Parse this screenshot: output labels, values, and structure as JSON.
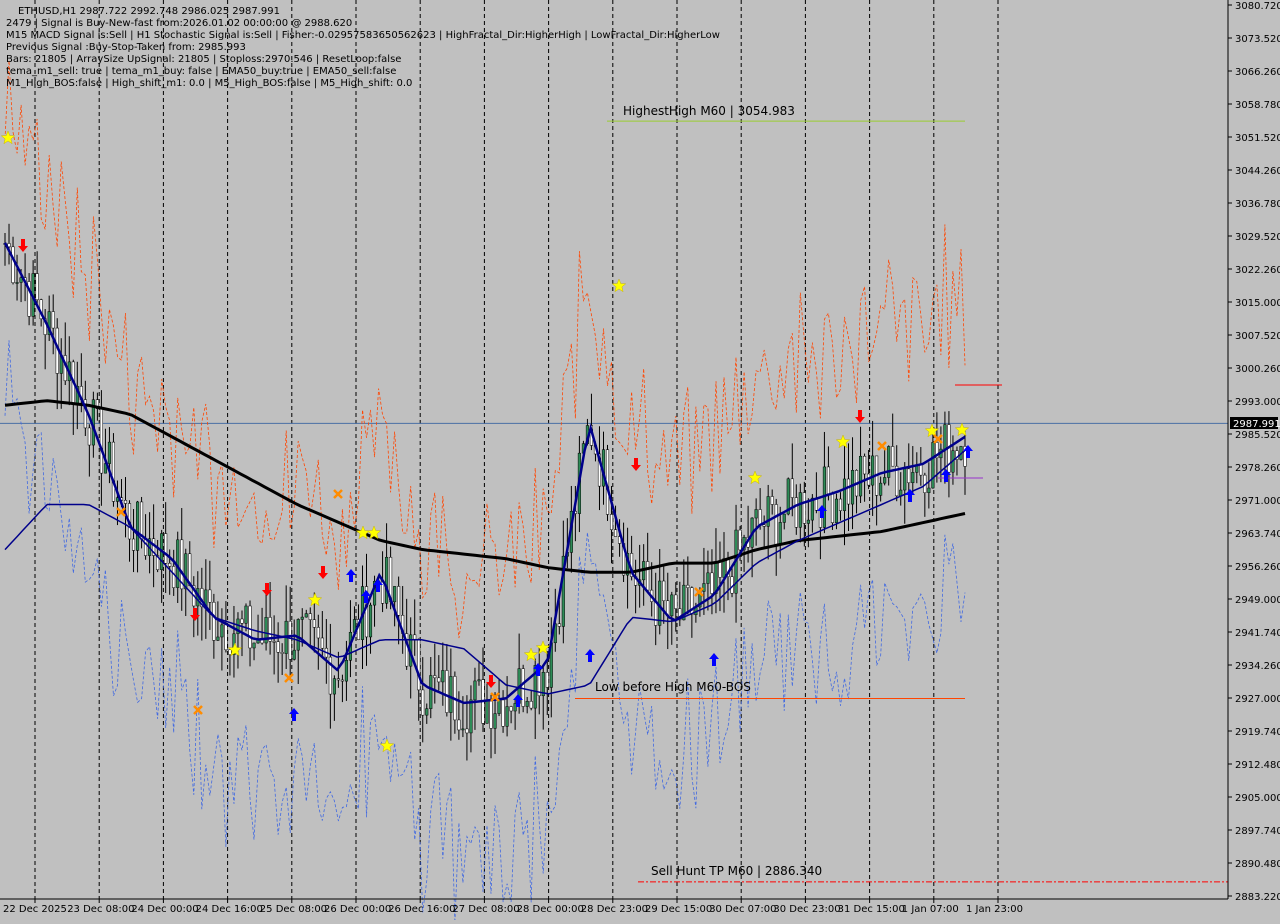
{
  "window": {
    "symbol_title": "ETHUSD,H1  2987.722 2992.748 2986.025 2987.991"
  },
  "info_lines": [
    "2479 | Signal is Buy-New-fast from:2026.01.02 00:00:00 @ 2988.620",
    "M15 MACD Signal is:Sell | H1 Stochastic Signal is:Sell | Fisher:-0.02957583650562623 | HighFractal_Dir:HigherHigh | LowFractal_Dir:HigherLow",
    "Previous Signal :Buy-Stop-Taken from: 2985.993",
    "Bars: 21805 | ArraySize UpSignal: 21805 | Stoploss:2970.546 | ResetLoop:false",
    "tema_m1_sell: true | tema_m1_buy: false | EMA50_buy:true | EMA50_sell:false",
    "M1_High_BOS:false | High_shift_m1: 0.0 | M5_High_BOS:false | M5_High_shift: 0.0"
  ],
  "price_axis": {
    "labels": [
      "3080.720",
      "3073.520",
      "3066.260",
      "3058.780",
      "3051.520",
      "3044.260",
      "3036.780",
      "3029.520",
      "3022.260",
      "3015.000",
      "3007.520",
      "3000.260",
      "2993.000",
      "2985.520",
      "2978.260",
      "2971.000",
      "2963.740",
      "2956.260",
      "2949.000",
      "2941.740",
      "2934.260",
      "2927.000",
      "2919.740",
      "2912.480",
      "2905.000",
      "2897.740",
      "2890.480",
      "2883.220"
    ],
    "current_price": "2987.991",
    "ylim": [
      2883.22,
      3080.72
    ]
  },
  "time_axis": {
    "labels": [
      "22 Dec 2025",
      "23 Dec 08:00",
      "24 Dec 00:00",
      "24 Dec 16:00",
      "25 Dec 08:00",
      "26 Dec 00:00",
      "26 Dec 16:00",
      "27 Dec 08:00",
      "28 Dec 00:00",
      "28 Dec 23:00",
      "29 Dec 15:00",
      "30 Dec 07:00",
      "30 Dec 23:00",
      "31 Dec 15:00",
      "1 Jan 07:00",
      "1 Jan 23:00"
    ]
  },
  "chart_data": {
    "type": "line",
    "title": "ETHUSD,H1",
    "ylim": [
      2883.22,
      3080.72
    ],
    "grid": true,
    "series": [
      {
        "values": [
          2992,
          2993,
          2992,
          2990,
          2985,
          2980,
          2975,
          2970,
          2966,
          2962,
          2960,
          2959,
          2958,
          2956,
          2955,
          2955,
          2957,
          2957,
          2960,
          2962,
          2963,
          2964,
          2966,
          2968
        ]
      },
      {
        "values": [
          3028,
          3010,
          2990,
          2965,
          2958,
          2945,
          2940,
          2941,
          2933,
          2955,
          2930,
          2926,
          2927,
          2935,
          2988,
          2955,
          2944,
          2950,
          2965,
          2970,
          2973,
          2977,
          2979,
          2985
        ]
      },
      {
        "values": [
          2960,
          2970,
          2970,
          2965,
          2955,
          2945,
          2942,
          2940,
          2936,
          2940,
          2940,
          2938,
          2930,
          2928,
          2930,
          2945,
          2944,
          2948,
          2957,
          2962,
          2966,
          2970,
          2974,
          2982
        ]
      }
    ],
    "horizontal_levels": [
      {
        "label": "HighestHigh   M60 | 3054.983",
        "value": 3054.983
      },
      {
        "label": "Low before High  M60-BOS",
        "value": 2927.0
      },
      {
        "label": "Sell Hunt TP M60 | 2886.340",
        "value": 2886.34
      }
    ]
  },
  "colors": {
    "background": "#c0c0c0",
    "grid": "#000000",
    "ema200": "#000000",
    "fast_ma": "#00008b",
    "slow_ma": "#00008b",
    "highest_high": "#9acd32",
    "low_before_high": "#ff4500",
    "sell_hunt": "#ff0000",
    "current_price_box": "#000000"
  }
}
